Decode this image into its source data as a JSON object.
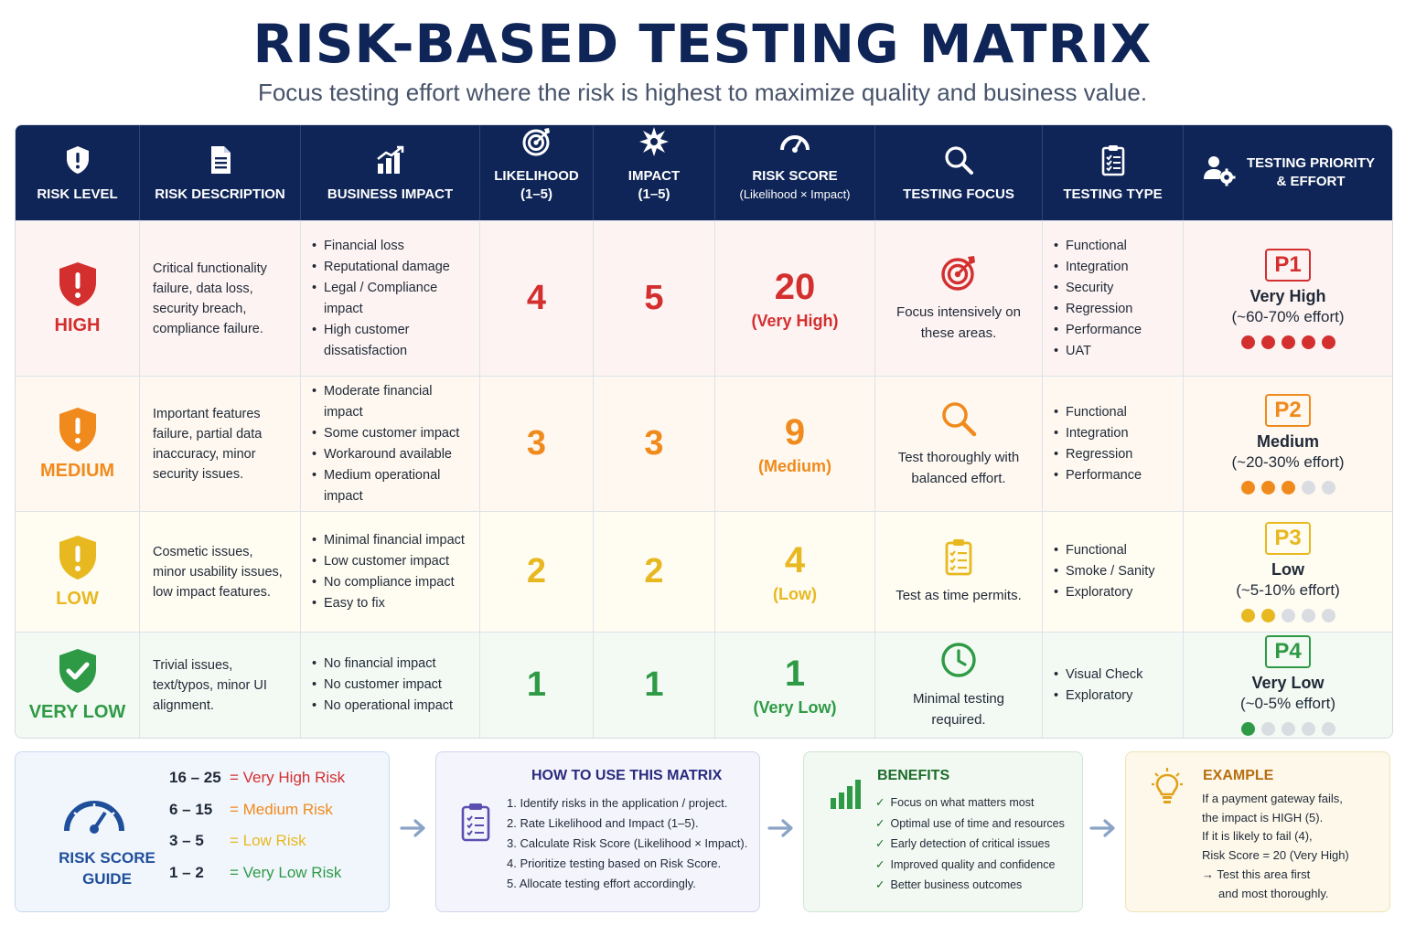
{
  "header": {
    "title": "RISK-BASED TESTING MATRIX",
    "subtitle": "Focus testing effort where the risk is highest to maximize quality and business value."
  },
  "columns": [
    {
      "label": "RISK LEVEL",
      "icon": "shield-alert-icon"
    },
    {
      "label": "RISK DESCRIPTION",
      "icon": "document-icon"
    },
    {
      "label": "BUSINESS IMPACT",
      "icon": "bar-chart-icon"
    },
    {
      "label": "LIKELIHOOD",
      "sub": "(1–5)",
      "icon": "target-icon"
    },
    {
      "label": "IMPACT",
      "sub": "(1–5)",
      "icon": "burst-icon"
    },
    {
      "label": "RISK SCORE",
      "sub": "(Likelihood × Impact)",
      "icon": "speedometer-icon"
    },
    {
      "label": "TESTING FOCUS",
      "icon": "magnifier-icon"
    },
    {
      "label": "TESTING TYPE",
      "icon": "clipboard-checklist-icon"
    },
    {
      "label": "TESTING PRIORITY",
      "sub": "& EFFORT",
      "icon": "user-gear-icon"
    }
  ],
  "rows": [
    {
      "level": "HIGH",
      "color": "#d32f2f",
      "description": "Critical functionality failure, data loss, security breach, compliance failure.",
      "impacts": [
        "Financial loss",
        "Reputational damage",
        "Legal / Compliance impact",
        "High customer dissatisfaction"
      ],
      "likelihood": "4",
      "impact": "5",
      "score": "20",
      "score_label": "(Very High)",
      "focus_icon": "target-icon",
      "focus": "Focus intensively on these areas.",
      "types": [
        "Functional",
        "Integration",
        "Security",
        "Regression",
        "Performance",
        "UAT"
      ],
      "priority": "P1",
      "priority_level": "Very High",
      "effort": "(~60-70% effort)",
      "effort_dots": 5
    },
    {
      "level": "MEDIUM",
      "color": "#f08a1c",
      "description": "Important features failure, partial data inaccuracy, minor security issues.",
      "impacts": [
        "Moderate financial impact",
        "Some customer impact",
        "Workaround available",
        "Medium operational impact"
      ],
      "likelihood": "3",
      "impact": "3",
      "score": "9",
      "score_label": "(Medium)",
      "focus_icon": "magnifier-icon",
      "focus": "Test thoroughly with balanced effort.",
      "types": [
        "Functional",
        "Integration",
        "Regression",
        "Performance"
      ],
      "priority": "P2",
      "priority_level": "Medium",
      "effort": "(~20-30% effort)",
      "effort_dots": 3
    },
    {
      "level": "LOW",
      "color": "#e8b820",
      "description": "Cosmetic issues, minor usability issues, low impact features.",
      "impacts": [
        "Minimal financial impact",
        "Low customer impact",
        "No compliance impact",
        "Easy to fix"
      ],
      "likelihood": "2",
      "impact": "2",
      "score": "4",
      "score_label": "(Low)",
      "focus_icon": "clipboard-checklist-icon",
      "focus": "Test as time permits.",
      "types": [
        "Functional",
        "Smoke / Sanity",
        "Exploratory"
      ],
      "priority": "P3",
      "priority_level": "Low",
      "effort": "(~5-10% effort)",
      "effort_dots": 2
    },
    {
      "level": "VERY LOW",
      "color": "#2e9a46",
      "description": "Trivial issues, text/typos, minor UI alignment.",
      "impacts": [
        "No financial impact",
        "No customer impact",
        "No operational impact"
      ],
      "likelihood": "1",
      "impact": "1",
      "score": "1",
      "score_label": "(Very Low)",
      "focus_icon": "clock-icon",
      "focus": "Minimal testing required.",
      "types": [
        "Visual Check",
        "Exploratory"
      ],
      "priority": "P4",
      "priority_level": "Very Low",
      "effort": "(~0-5% effort)",
      "effort_dots": 1
    }
  ],
  "guide": {
    "title": "RISK SCORE GUIDE",
    "icon": "speedometer-icon",
    "ranges": [
      {
        "range": "16 – 25",
        "label": "= Very High Risk",
        "color": "#d32f2f"
      },
      {
        "range": "6 – 15",
        "label": "= Medium Risk",
        "color": "#f08a1c"
      },
      {
        "range": "3 – 5",
        "label": "= Low Risk",
        "color": "#e8b820"
      },
      {
        "range": "1 – 2",
        "label": "= Very Low Risk",
        "color": "#2e9a46"
      }
    ]
  },
  "howto": {
    "title": "HOW TO USE THIS MATRIX",
    "icon": "clipboard-checklist-icon",
    "steps": [
      "1.  Identify risks in the application / project.",
      "2.  Rate Likelihood and Impact (1–5).",
      "3.  Calculate Risk Score (Likelihood × Impact).",
      "4.  Prioritize testing based on Risk Score.",
      "5.  Allocate testing effort accordingly."
    ]
  },
  "benefits": {
    "title": "BENEFITS",
    "icon": "bar-chart-icon",
    "items": [
      "Focus on what matters most",
      "Optimal use of time and resources",
      "Early detection of critical issues",
      "Improved quality and confidence",
      "Better business outcomes"
    ]
  },
  "example": {
    "title": "EXAMPLE",
    "icon": "lightbulb-icon",
    "lines": [
      "If a payment gateway fails,",
      "the impact is HIGH (5).",
      "If it is likely to fail (4),",
      "Risk Score = 20 (Very High)",
      "→ Test this area first",
      "     and most thoroughly."
    ]
  },
  "colors": {
    "navy": "#0f2557",
    "high": "#d32f2f",
    "medium": "#f08a1c",
    "low": "#e8b820",
    "very_low": "#2e9a46",
    "dot_empty": "#d9dce1"
  }
}
